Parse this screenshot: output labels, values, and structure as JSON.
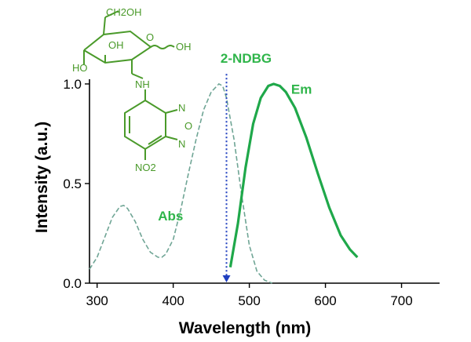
{
  "chart_data": {
    "type": "line",
    "xlabel": "Wavelength (nm)",
    "ylabel": "Intensity (a.u.)",
    "xlim": [
      290,
      750
    ],
    "ylim": [
      0,
      1.0
    ],
    "x_ticks": [
      300,
      400,
      500,
      600,
      700
    ],
    "y_ticks": [
      0.0,
      0.5,
      1.0
    ],
    "y_tick_labels": [
      "0.0",
      "0.5",
      "1.0"
    ],
    "grid": false,
    "colors": {
      "abs": "#6fa595",
      "em": "#1fa84a",
      "marker": "#1f3fbf",
      "compound": "#4a9a2a",
      "label_green": "#2fb54a"
    },
    "annotations": {
      "compound_name": "2-NDBG",
      "compound_x": 470
    },
    "structure_labels": {
      "ch2oh": "CH2OH",
      "o_ring": "O",
      "oh_right": "OH",
      "oh_mid": "OH",
      "ho_left": "HO",
      "nh": "NH",
      "n_top": "N",
      "o_oxa": "O",
      "n_bottom": "N",
      "no2": "NO2"
    },
    "series": [
      {
        "name": "Abs",
        "style": "dashed",
        "x": [
          290,
          300,
          310,
          320,
          330,
          335,
          340,
          350,
          360,
          370,
          380,
          385,
          390,
          400,
          410,
          420,
          430,
          440,
          450,
          460,
          465,
          470,
          480,
          490,
          500,
          510,
          520,
          530
        ],
        "y": [
          0.07,
          0.13,
          0.23,
          0.33,
          0.385,
          0.39,
          0.375,
          0.31,
          0.22,
          0.155,
          0.13,
          0.13,
          0.145,
          0.22,
          0.37,
          0.55,
          0.72,
          0.87,
          0.96,
          1.0,
          0.99,
          0.93,
          0.72,
          0.44,
          0.19,
          0.06,
          0.015,
          0.0
        ]
      },
      {
        "name": "Em",
        "style": "solid",
        "x": [
          475,
          485,
          495,
          505,
          515,
          525,
          532,
          540,
          548,
          560,
          575,
          590,
          605,
          620,
          632,
          642
        ],
        "y": [
          0.08,
          0.3,
          0.58,
          0.8,
          0.93,
          0.99,
          1.0,
          0.99,
          0.96,
          0.88,
          0.73,
          0.55,
          0.38,
          0.24,
          0.17,
          0.13
        ]
      }
    ]
  }
}
